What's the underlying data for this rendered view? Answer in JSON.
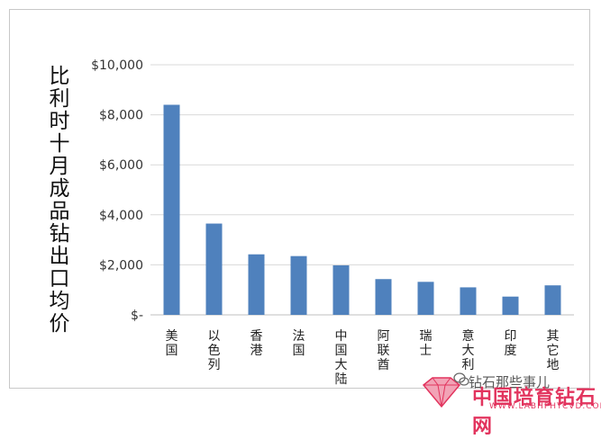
{
  "chart_data": {
    "type": "bar",
    "ylabel": "比利时十月成品钻出口均价",
    "categories": [
      "美国",
      "以色列",
      "香港",
      "法国",
      "中国大陆",
      "阿联酋",
      "瑞士",
      "意大利",
      "印度",
      "其它地"
    ],
    "values": [
      8400,
      3650,
      2420,
      2350,
      1980,
      1430,
      1320,
      1100,
      730,
      1180
    ],
    "ylim": [
      0,
      10000
    ],
    "yticks": [
      0,
      2000,
      4000,
      6000,
      8000,
      10000
    ],
    "ytick_labels": [
      "$-",
      "$2,000",
      "$4,000",
      "$6,000",
      "$8,000",
      "$10,000"
    ],
    "grid": true,
    "legend": "none",
    "bar_color": "#4f81bd",
    "grid_color": "#d9d9d9"
  },
  "watermark": {
    "account": "钻石那些事儿",
    "brand": "中国培育钻石网",
    "url": "WWW.LABHPHTCVD.COM",
    "brand_color": "#e2345e"
  }
}
